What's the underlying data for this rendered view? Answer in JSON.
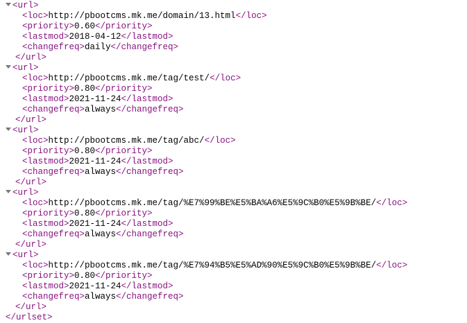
{
  "xml_viewer": {
    "colors": {
      "tag": "#881280",
      "text": "#000000",
      "arrow": "#787878",
      "background": "#ffffff"
    },
    "tags": {
      "url_open": "<url>",
      "url_close": "</url>",
      "loc_open": "<loc>",
      "loc_close": "</loc>",
      "priority_open": "<priority>",
      "priority_close": "</priority>",
      "lastmod_open": "<lastmod>",
      "lastmod_close": "</lastmod>",
      "changefreq_open": "<changefreq>",
      "changefreq_close": "</changefreq>",
      "urlset_close": "</urlset>"
    },
    "url_entries": [
      {
        "loc": "http://pbootcms.mk.me/domain/13.html",
        "priority": "0.60",
        "lastmod": "2018-04-12",
        "changefreq": "daily"
      },
      {
        "loc": "http://pbootcms.mk.me/tag/test/",
        "priority": "0.80",
        "lastmod": "2021-11-24",
        "changefreq": "always"
      },
      {
        "loc": "http://pbootcms.mk.me/tag/abc/",
        "priority": "0.80",
        "lastmod": "2021-11-24",
        "changefreq": "always"
      },
      {
        "loc": "http://pbootcms.mk.me/tag/%E7%99%BE%E5%BA%A6%E5%9C%B0%E5%9B%BE/",
        "priority": "0.80",
        "lastmod": "2021-11-24",
        "changefreq": "always"
      },
      {
        "loc": "http://pbootcms.mk.me/tag/%E7%94%B5%E5%AD%90%E5%9C%B0%E5%9B%BE/",
        "priority": "0.80",
        "lastmod": "2021-11-24",
        "changefreq": "always"
      }
    ]
  }
}
